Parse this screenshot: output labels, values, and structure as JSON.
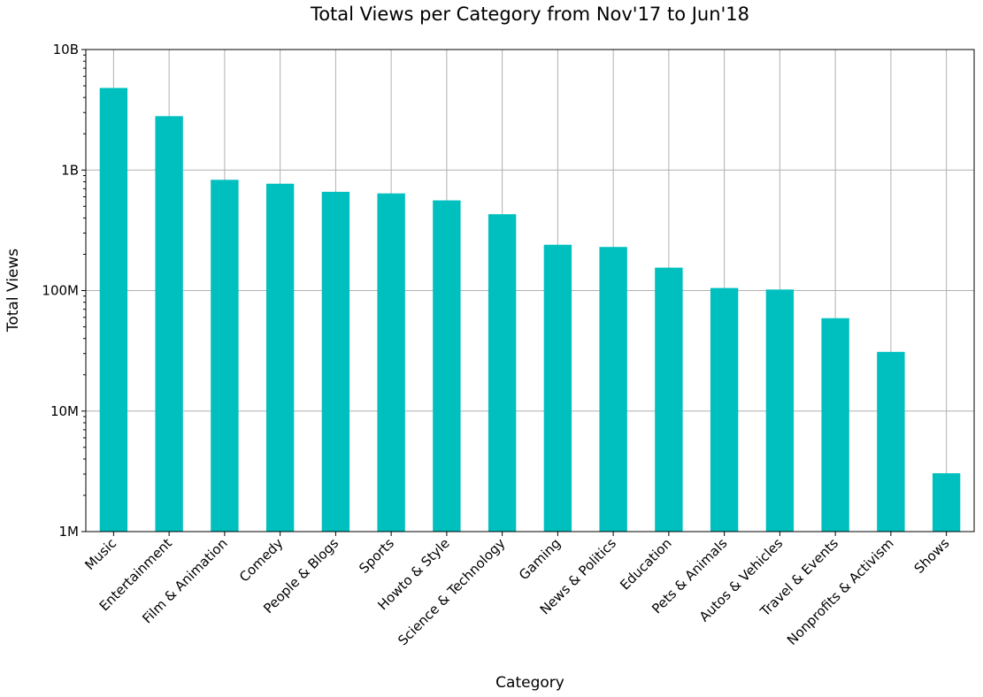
{
  "chart_data": {
    "type": "bar",
    "title": "Total Views per Category from Nov'17 to Jun'18",
    "xlabel": "Category",
    "ylabel": "Total Views",
    "yscale": "log",
    "ylim": [
      1000000,
      10000000000
    ],
    "grid": true,
    "bar_color": "#00bfbf",
    "yticks": [
      {
        "value": 1000000,
        "label": "1M"
      },
      {
        "value": 10000000,
        "label": "10M"
      },
      {
        "value": 100000000,
        "label": "100M"
      },
      {
        "value": 1000000000,
        "label": "1B"
      },
      {
        "value": 10000000000,
        "label": "10B"
      }
    ],
    "categories": [
      "Music",
      "Entertainment",
      "Film & Animation",
      "Comedy",
      "People & Blogs",
      "Sports",
      "Howto & Style",
      "Science & Technology",
      "Gaming",
      "News & Politics",
      "Education",
      "Pets & Animals",
      "Autos & Vehicles",
      "Travel & Events",
      "Nonprofits & Activism",
      "Shows"
    ],
    "values": [
      4800000000,
      2800000000,
      830000000,
      770000000,
      660000000,
      640000000,
      560000000,
      430000000,
      240000000,
      230000000,
      155000000,
      105000000,
      102000000,
      59000000,
      31000000,
      3050000
    ]
  }
}
